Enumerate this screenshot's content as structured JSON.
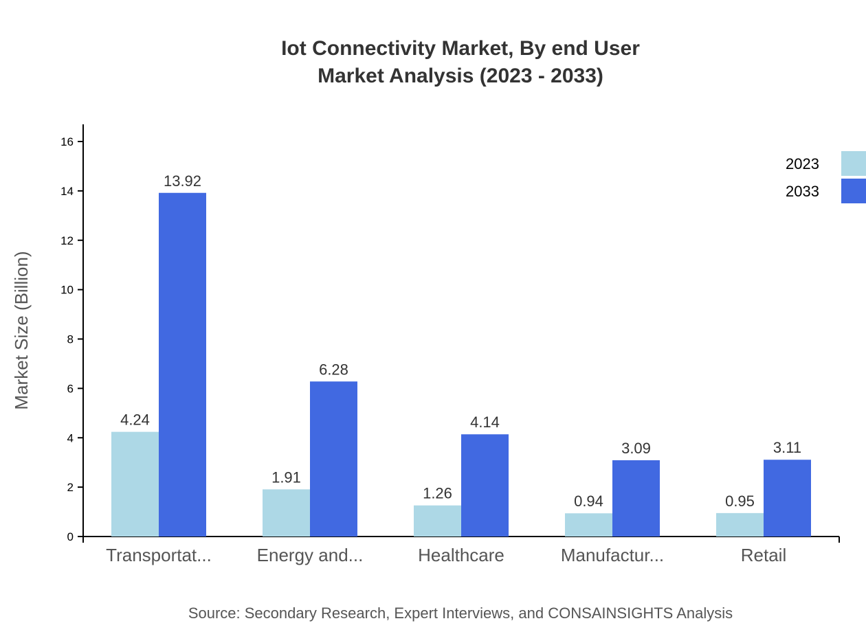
{
  "chart_data": {
    "type": "bar",
    "title": [
      "Iot Connectivity Market, By end User",
      "Market Analysis (2023 - 2033)"
    ],
    "xlabel": "",
    "ylabel": "Market Size (Billion)",
    "ylim": [
      0,
      16.7
    ],
    "yticks": [
      0,
      2,
      4,
      6,
      8,
      10,
      12,
      14,
      16
    ],
    "categories": [
      "Transportat...",
      "Energy and...",
      "Healthcare",
      "Manufactur...",
      "Retail"
    ],
    "series": [
      {
        "name": "2023",
        "color": "#add8e6",
        "values": [
          4.24,
          1.91,
          1.26,
          0.94,
          0.95
        ]
      },
      {
        "name": "2033",
        "color": "#4169e1",
        "values": [
          13.92,
          6.28,
          4.14,
          3.09,
          3.11
        ]
      }
    ],
    "legend_position": "top-right",
    "grid": false,
    "source": "Source: Secondary Research, Expert Interviews, and CONSAINSIGHTS Analysis"
  }
}
